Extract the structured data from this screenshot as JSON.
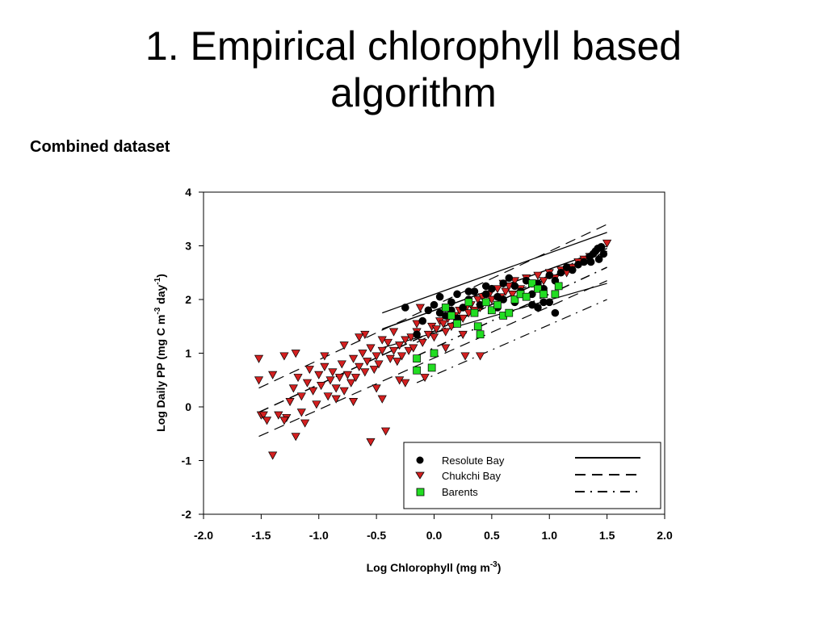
{
  "slide": {
    "title_line1": "1. Empirical chlorophyll based",
    "title_line2": "algorithm",
    "subtitle": "Combined dataset"
  },
  "chart_data": {
    "type": "scatter",
    "xlabel": "Log Chlorophyll (mg m",
    "xlabel_sup": "-3",
    "xlabel_end": ")",
    "ylabel": "Log Daily PP (mg C m",
    "ylabel_sup1": "-3",
    "ylabel_mid": " day",
    "ylabel_sup2": "-1",
    "ylabel_end": ")",
    "xlim": [
      -2.0,
      2.0
    ],
    "ylim": [
      -2,
      4
    ],
    "x_ticks": [
      "-2.0",
      "-1.5",
      "-1.0",
      "-0.5",
      "0.0",
      "0.5",
      "1.0",
      "1.5",
      "2.0"
    ],
    "y_ticks": [
      "-2",
      "-1",
      "0",
      "1",
      "2",
      "3",
      "4"
    ],
    "grid": false,
    "legend_position": "bottom-right",
    "series": [
      {
        "name": "Resolute Bay",
        "marker": "circle",
        "color": "#000000",
        "line_style": "solid",
        "fit_line": {
          "x": [
            -0.45,
            1.5
          ],
          "y": [
            1.45,
            2.95
          ]
        },
        "bounds": [
          {
            "x": [
              -0.45,
              1.5
            ],
            "y": [
              1.75,
              3.25
            ]
          },
          {
            "x": [
              -0.45,
              1.5
            ],
            "y": [
              1.1,
              2.3
            ]
          }
        ],
        "points": [
          [
            -0.15,
            1.35
          ],
          [
            -0.1,
            1.6
          ],
          [
            -0.05,
            1.8
          ],
          [
            0.0,
            1.9
          ],
          [
            0.05,
            2.05
          ],
          [
            0.1,
            1.7
          ],
          [
            0.15,
            1.95
          ],
          [
            0.2,
            2.1
          ],
          [
            0.25,
            1.85
          ],
          [
            0.3,
            2.0
          ],
          [
            0.35,
            2.15
          ],
          [
            0.4,
            1.9
          ],
          [
            0.45,
            2.1
          ],
          [
            0.5,
            2.2
          ],
          [
            0.55,
            2.05
          ],
          [
            0.6,
            2.3
          ],
          [
            0.65,
            2.4
          ],
          [
            0.7,
            2.25
          ],
          [
            0.75,
            2.15
          ],
          [
            0.8,
            2.35
          ],
          [
            0.85,
            2.1
          ],
          [
            0.9,
            2.3
          ],
          [
            0.95,
            2.2
          ],
          [
            1.0,
            2.45
          ],
          [
            1.05,
            2.35
          ],
          [
            1.1,
            2.5
          ],
          [
            1.15,
            2.6
          ],
          [
            1.2,
            2.55
          ],
          [
            1.25,
            2.65
          ],
          [
            1.3,
            2.7
          ],
          [
            1.35,
            2.8
          ],
          [
            1.38,
            2.85
          ],
          [
            1.4,
            2.9
          ],
          [
            1.42,
            2.95
          ],
          [
            1.45,
            2.98
          ],
          [
            1.47,
            2.85
          ],
          [
            1.43,
            2.75
          ],
          [
            1.36,
            2.7
          ],
          [
            0.2,
            1.65
          ],
          [
            0.15,
            1.8
          ],
          [
            0.05,
            1.75
          ],
          [
            0.9,
            1.85
          ],
          [
            0.85,
            1.9
          ],
          [
            0.95,
            1.95
          ],
          [
            0.7,
            1.95
          ],
          [
            0.6,
            2.0
          ],
          [
            0.55,
            1.85
          ],
          [
            0.3,
            2.15
          ],
          [
            -0.25,
            1.85
          ],
          [
            1.0,
            1.95
          ],
          [
            1.05,
            1.75
          ],
          [
            0.45,
            2.25
          ],
          [
            0.35,
            1.75
          ],
          [
            0.8,
            2.05
          ]
        ]
      },
      {
        "name": "Chukchi Bay",
        "marker": "triangle-down",
        "color": "#d42020",
        "line_style": "dashed",
        "fit_line": {
          "x": [
            -1.52,
            1.5
          ],
          "y": [
            -0.1,
            2.9
          ]
        },
        "bounds": [
          {
            "x": [
              -1.52,
              1.5
            ],
            "y": [
              0.35,
              3.4
            ]
          },
          {
            "x": [
              -1.52,
              1.5
            ],
            "y": [
              -0.55,
              2.35
            ]
          }
        ],
        "points": [
          [
            -1.52,
            0.9
          ],
          [
            -1.52,
            0.5
          ],
          [
            -1.5,
            -0.15
          ],
          [
            -1.48,
            -0.15
          ],
          [
            -1.45,
            -0.25
          ],
          [
            -1.4,
            -0.9
          ],
          [
            -1.4,
            0.6
          ],
          [
            -1.35,
            -0.15
          ],
          [
            -1.3,
            0.95
          ],
          [
            -1.28,
            -0.2
          ],
          [
            -1.25,
            0.1
          ],
          [
            -1.22,
            0.35
          ],
          [
            -1.2,
            1.0
          ],
          [
            -1.2,
            -0.55
          ],
          [
            -1.18,
            0.55
          ],
          [
            -1.15,
            0.2
          ],
          [
            -1.12,
            -0.3
          ],
          [
            -1.1,
            0.45
          ],
          [
            -1.08,
            0.7
          ],
          [
            -1.05,
            0.3
          ],
          [
            -1.02,
            0.05
          ],
          [
            -1.0,
            0.6
          ],
          [
            -0.98,
            0.4
          ],
          [
            -0.95,
            0.75
          ],
          [
            -0.92,
            0.2
          ],
          [
            -0.9,
            0.5
          ],
          [
            -0.88,
            0.65
          ],
          [
            -0.85,
            0.35
          ],
          [
            -0.82,
            0.55
          ],
          [
            -0.8,
            0.8
          ],
          [
            -0.78,
            0.3
          ],
          [
            -0.75,
            0.6
          ],
          [
            -0.72,
            0.45
          ],
          [
            -0.7,
            0.9
          ],
          [
            -0.68,
            0.55
          ],
          [
            -0.65,
            0.75
          ],
          [
            -0.62,
            1.0
          ],
          [
            -0.6,
            0.65
          ],
          [
            -0.58,
            0.85
          ],
          [
            -0.55,
            1.1
          ],
          [
            -0.55,
            -0.65
          ],
          [
            -0.52,
            0.7
          ],
          [
            -0.5,
            0.95
          ],
          [
            -0.48,
            0.8
          ],
          [
            -0.45,
            1.05
          ],
          [
            -0.45,
            0.15
          ],
          [
            -0.42,
            -0.45
          ],
          [
            -0.4,
            1.2
          ],
          [
            -0.38,
            0.9
          ],
          [
            -0.35,
            1.05
          ],
          [
            -0.32,
            0.85
          ],
          [
            -0.3,
            1.15
          ],
          [
            -0.28,
            0.95
          ],
          [
            -0.25,
            1.25
          ],
          [
            -0.22,
            1.05
          ],
          [
            -0.2,
            1.3
          ],
          [
            -0.18,
            1.1
          ],
          [
            -0.15,
            1.4
          ],
          [
            -0.12,
            1.85
          ],
          [
            -0.1,
            1.2
          ],
          [
            -0.08,
            0.55
          ],
          [
            -0.05,
            1.35
          ],
          [
            -0.02,
            1.5
          ],
          [
            0.0,
            1.3
          ],
          [
            0.02,
            1.45
          ],
          [
            0.05,
            1.6
          ],
          [
            0.08,
            1.55
          ],
          [
            0.1,
            1.4
          ],
          [
            0.12,
            1.65
          ],
          [
            0.15,
            1.5
          ],
          [
            0.18,
            1.7
          ],
          [
            0.2,
            1.6
          ],
          [
            0.22,
            1.8
          ],
          [
            0.25,
            1.65
          ],
          [
            0.28,
            1.85
          ],
          [
            0.3,
            1.75
          ],
          [
            0.32,
            1.9
          ],
          [
            0.35,
            1.8
          ],
          [
            0.38,
            2.0
          ],
          [
            0.4,
            1.85
          ],
          [
            0.42,
            2.05
          ],
          [
            0.45,
            1.95
          ],
          [
            0.48,
            2.1
          ],
          [
            0.5,
            2.0
          ],
          [
            0.55,
            2.2
          ],
          [
            0.58,
            2.05
          ],
          [
            0.6,
            2.3
          ],
          [
            0.62,
            2.15
          ],
          [
            0.65,
            2.25
          ],
          [
            0.68,
            2.1
          ],
          [
            0.7,
            2.35
          ],
          [
            0.75,
            2.2
          ],
          [
            0.8,
            2.4
          ],
          [
            0.85,
            2.3
          ],
          [
            0.9,
            2.45
          ],
          [
            0.95,
            2.35
          ],
          [
            1.0,
            2.5
          ],
          [
            1.05,
            2.4
          ],
          [
            1.1,
            2.55
          ],
          [
            1.15,
            2.5
          ],
          [
            1.2,
            2.6
          ],
          [
            1.25,
            2.7
          ],
          [
            1.3,
            2.75
          ],
          [
            1.35,
            2.8
          ],
          [
            1.5,
            3.05
          ],
          [
            -0.95,
            0.95
          ],
          [
            -0.6,
            1.35
          ],
          [
            -0.65,
            1.3
          ],
          [
            -0.3,
            0.5
          ],
          [
            -0.25,
            0.45
          ],
          [
            0.25,
            1.35
          ],
          [
            0.27,
            0.95
          ],
          [
            0.4,
            0.95
          ],
          [
            0.1,
            1.1
          ],
          [
            -1.3,
            -0.25
          ],
          [
            -1.15,
            -0.1
          ],
          [
            -0.85,
            0.15
          ],
          [
            -0.7,
            0.1
          ],
          [
            -0.5,
            0.35
          ],
          [
            -0.78,
            1.15
          ],
          [
            -0.45,
            1.25
          ],
          [
            -0.35,
            1.4
          ],
          [
            -0.15,
            1.55
          ]
        ]
      },
      {
        "name": "Barents",
        "marker": "square",
        "color": "#22dd22",
        "line_style": "dash-dot",
        "fit_line": {
          "x": [
            -0.15,
            1.5
          ],
          "y": [
            0.95,
            2.6
          ]
        },
        "bounds": [
          {
            "x": [
              -0.15,
              1.5
            ],
            "y": [
              1.2,
              3.0
            ]
          },
          {
            "x": [
              -0.15,
              1.5
            ],
            "y": [
              0.45,
              2.0
            ]
          }
        ],
        "points": [
          [
            -0.15,
            0.9
          ],
          [
            -0.15,
            0.68
          ],
          [
            -0.02,
            0.73
          ],
          [
            0.0,
            1.0
          ],
          [
            0.1,
            1.85
          ],
          [
            0.15,
            1.7
          ],
          [
            0.2,
            1.55
          ],
          [
            0.3,
            1.95
          ],
          [
            0.35,
            1.75
          ],
          [
            0.38,
            1.5
          ],
          [
            0.4,
            1.35
          ],
          [
            0.45,
            1.95
          ],
          [
            0.5,
            1.8
          ],
          [
            0.55,
            1.9
          ],
          [
            0.6,
            1.7
          ],
          [
            0.65,
            1.75
          ],
          [
            0.7,
            2.0
          ],
          [
            0.75,
            2.1
          ],
          [
            0.8,
            2.05
          ],
          [
            0.85,
            2.3
          ],
          [
            0.9,
            2.2
          ],
          [
            0.95,
            2.1
          ],
          [
            1.05,
            2.1
          ],
          [
            1.08,
            2.25
          ]
        ]
      }
    ]
  }
}
